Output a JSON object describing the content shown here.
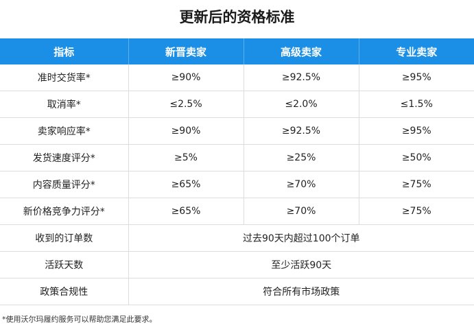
{
  "title": "更新后的资格标准",
  "table": {
    "headers": [
      "指标",
      "新晋卖家",
      "高级卖家",
      "专业卖家"
    ],
    "rows": [
      [
        "准时交货率*",
        "≥90%",
        "≥92.5%",
        "≥95%"
      ],
      [
        "取消率*",
        "≤2.5%",
        "≤2.0%",
        "≤1.5%"
      ],
      [
        "卖家响应率*",
        "≥90%",
        "≥92.5%",
        "≥95%"
      ],
      [
        "发货速度评分*",
        "≥5%",
        "≥25%",
        "≥50%"
      ],
      [
        "内容质量评分*",
        "≥65%",
        "≥70%",
        "≥75%"
      ],
      [
        "新价格竞争力评分*",
        "≥65%",
        "≥70%",
        "≥75%"
      ]
    ],
    "merged_rows": [
      [
        "收到的订单数",
        "过去90天内超过100个订单"
      ],
      [
        "活跃天数",
        "至少活跃90天"
      ],
      [
        "政策合规性",
        "符合所有市场政策"
      ]
    ],
    "header_color": "#1b8fe6"
  },
  "footnote": "*使用沃尔玛履约服务可以帮助您满足此要求。"
}
